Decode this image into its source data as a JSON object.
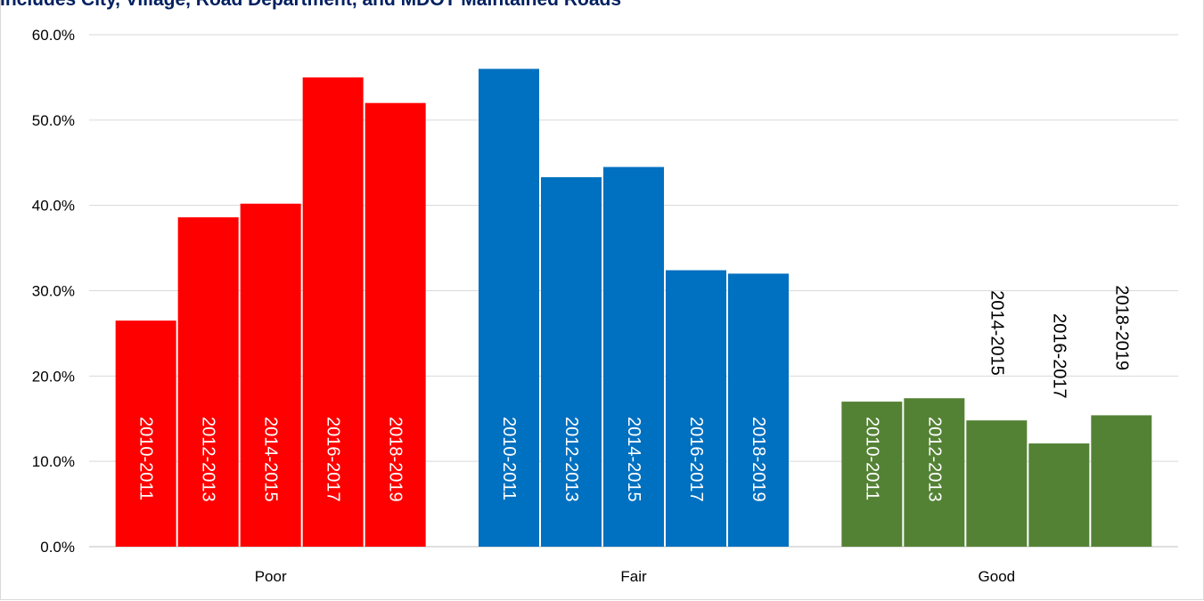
{
  "chart_data": {
    "type": "bar",
    "title": "Includes City, Village, Road Department, and MDOT Maintained Roads",
    "categories": [
      "Poor",
      "Fair",
      "Good"
    ],
    "series_labels": [
      "2010-2011",
      "2012-2013",
      "2014-2015",
      "2016-2017",
      "2018-2019"
    ],
    "values": [
      [
        26.5,
        38.6,
        40.2,
        55.0,
        52.0
      ],
      [
        56.0,
        43.3,
        44.5,
        32.4,
        32.0
      ],
      [
        17.0,
        17.4,
        14.8,
        12.1,
        15.4
      ]
    ],
    "category_colors": [
      "#ff0000",
      "#0070c0",
      "#548235"
    ],
    "yticks": [
      "0.0%",
      "10.0%",
      "20.0%",
      "30.0%",
      "40.0%",
      "50.0%",
      "60.0%"
    ],
    "ylim": [
      0,
      60
    ],
    "grid": true,
    "xlabel": "",
    "ylabel": ""
  }
}
